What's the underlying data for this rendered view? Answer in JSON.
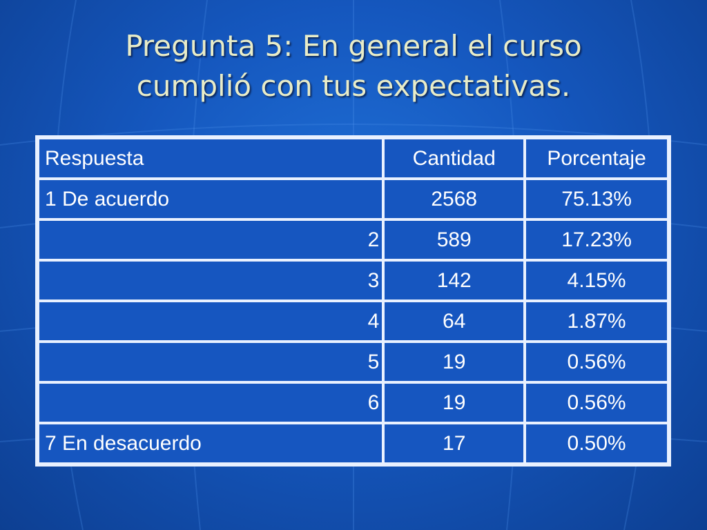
{
  "slide": {
    "title_line1": "Pregunta 5: En general el curso",
    "title_line2": "cumplió con tus expectativas."
  },
  "table": {
    "headers": [
      "Respuesta",
      "Cantidad",
      "Porcentaje"
    ],
    "rows": [
      {
        "respuesta": "1 De acuerdo",
        "cantidad": "2568",
        "porcentaje": "75.13%"
      },
      {
        "respuesta": "2",
        "cantidad": "589",
        "porcentaje": "17.23%"
      },
      {
        "respuesta": "3",
        "cantidad": "142",
        "porcentaje": "4.15%"
      },
      {
        "respuesta": "4",
        "cantidad": "64",
        "porcentaje": "1.87%"
      },
      {
        "respuesta": "5",
        "cantidad": "19",
        "porcentaje": "0.56%"
      },
      {
        "respuesta": "6",
        "cantidad": "19",
        "porcentaje": "0.56%"
      },
      {
        "respuesta": "7 En desacuerdo",
        "cantidad": "17",
        "porcentaje": "0.50%"
      }
    ]
  },
  "colors": {
    "background": "#1557be",
    "title_text": "#e8ecc8",
    "table_border": "#e9f1ff",
    "cell_text": "#ffffff"
  }
}
